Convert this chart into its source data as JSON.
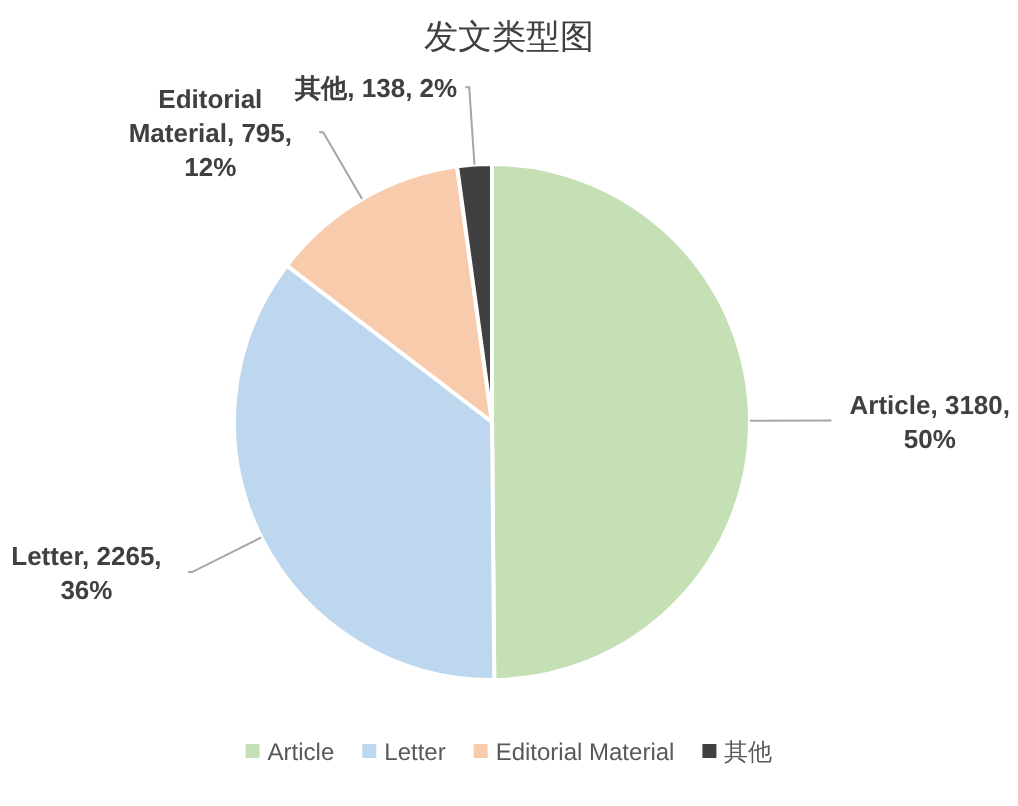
{
  "chart_data": {
    "type": "pie",
    "title": "发文类型图",
    "categories": [
      "Article",
      "Letter",
      "Editorial Material",
      "其他"
    ],
    "values": [
      3180,
      2265,
      795,
      138
    ],
    "colors": [
      "#c5e0b4",
      "#bdd7ee",
      "#f8cbad",
      "#404040"
    ],
    "value_labels": [
      "Article, 3180,\n50%",
      "Letter, 2265,\n36%",
      "Editorial\nMaterial, 795,\n12%",
      "其他, 138, 2%"
    ],
    "legend": "bottom"
  }
}
